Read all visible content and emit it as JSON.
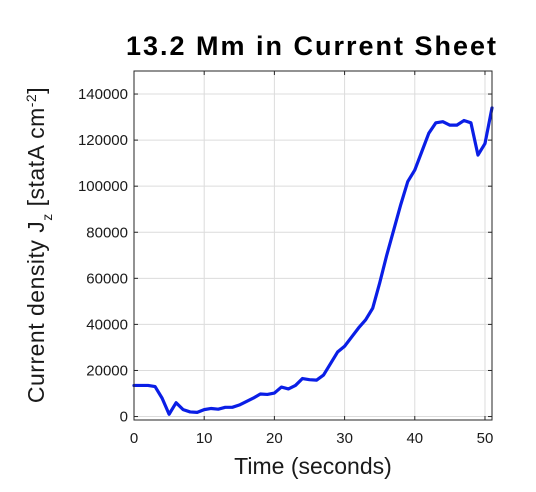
{
  "chart_data": {
    "type": "line",
    "title": "13.2 Mm in Current Sheet",
    "xlabel": "Time (seconds)",
    "ylabel": {
      "prefix": "Current density J",
      "subscript": "z",
      "units": " [statA cm",
      "superscript": "-2",
      "close": "]"
    },
    "xlim": [
      0,
      51
    ],
    "ylim": [
      -1500,
      150000
    ],
    "xticks": [
      0,
      10,
      20,
      30,
      40,
      50
    ],
    "yticks": [
      0,
      20000,
      40000,
      60000,
      80000,
      100000,
      120000,
      140000
    ],
    "grid": true,
    "line_color": "#0a1ee6",
    "series": [
      {
        "x": [
          0,
          1,
          2,
          3,
          4,
          5,
          6,
          7,
          8,
          9,
          10,
          11,
          12,
          13,
          14,
          15,
          16,
          17,
          18,
          19,
          20,
          21,
          22,
          23,
          24,
          25,
          26,
          27,
          28,
          29,
          30,
          31,
          32,
          33,
          34,
          35,
          36,
          37,
          38,
          39,
          40,
          41,
          42,
          43,
          44,
          45,
          46,
          47,
          48,
          49,
          50,
          51
        ],
        "values": [
          13500,
          13500,
          13500,
          13000,
          8000,
          1000,
          6000,
          3000,
          2000,
          1800,
          3000,
          3500,
          3200,
          4000,
          4000,
          5000,
          6500,
          8000,
          9800,
          9600,
          10200,
          12800,
          12000,
          13500,
          16500,
          16000,
          15800,
          18000,
          23000,
          28000,
          30500,
          34500,
          38500,
          42000,
          47000,
          58000,
          70000,
          81000,
          92000,
          102000,
          107000,
          115000,
          123000,
          127500,
          128000,
          126500,
          126500,
          128500,
          127500,
          113500,
          118500,
          134000
        ]
      }
    ]
  }
}
